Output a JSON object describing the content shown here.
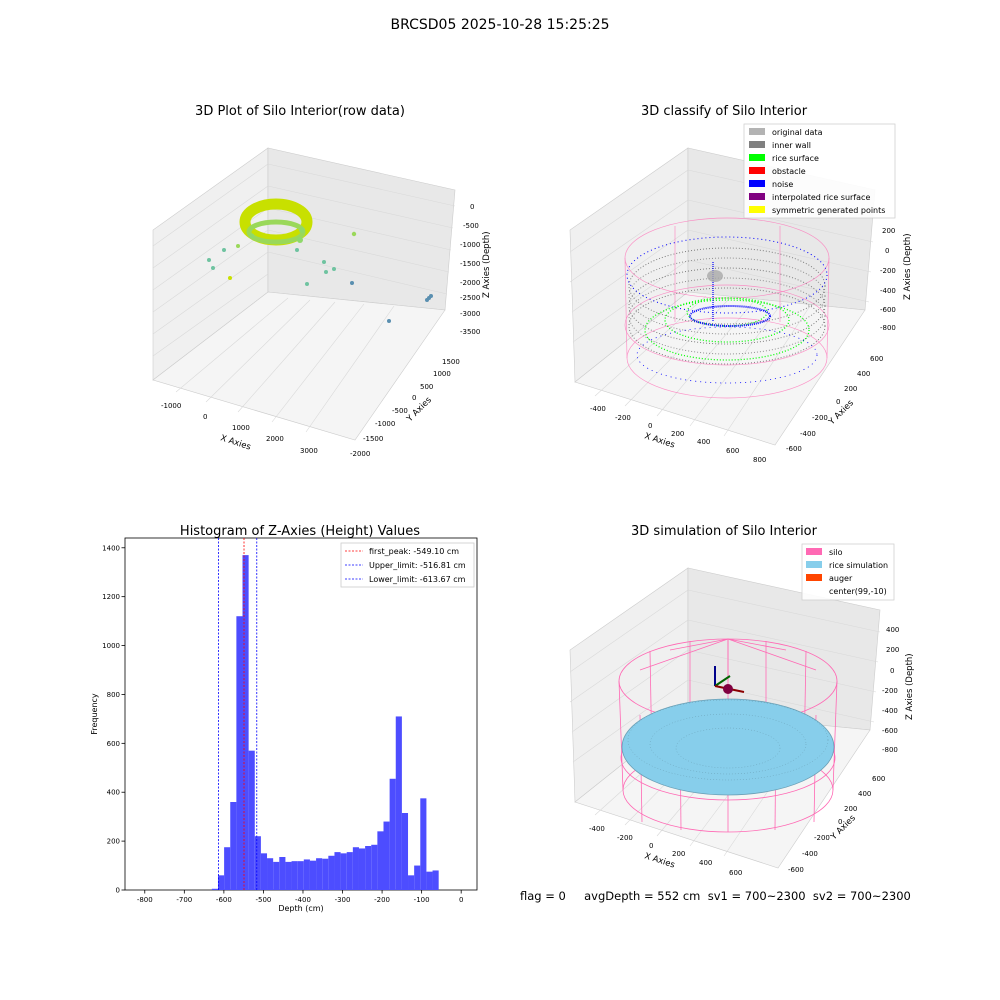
{
  "figure_title": "BRCSD05 2025-10-28 15:25:25",
  "footer": {
    "text": "flag = 0     avgDepth = 552 cm  sv1 = 700~2300  sv2 = 700~2300"
  },
  "chart_data": [
    {
      "type": "scatter",
      "projection": "3d",
      "title": "3D Plot of Silo Interior(row data)",
      "xlabel": "X Axies",
      "ylabel": "Y Axies",
      "zlabel": "Z Axies (Depth)",
      "x_ticks": [
        "-1000",
        "0",
        "1000",
        "2000",
        "3000"
      ],
      "y_ticks": [
        "1500",
        "1000",
        "500",
        "0",
        "-500",
        "-1000",
        "-1500",
        "-2000"
      ],
      "z_ticks": [
        "0",
        "-500",
        "-1000",
        "-1500",
        "-2000",
        "-2500",
        "-3000",
        "-3500"
      ],
      "colors": {
        "main_ring": "#c8e000",
        "ring_low": "#8fd96a",
        "outlier": "#6fc3a0",
        "far": "#5a8fb0"
      }
    },
    {
      "type": "scatter",
      "projection": "3d",
      "title": "3D classify of Silo Interior",
      "xlabel": "X Axies",
      "ylabel": "Y Axies",
      "zlabel": "Z Axies (Depth)",
      "x_ticks": [
        "-400",
        "-200",
        "0",
        "200",
        "400",
        "600",
        "800"
      ],
      "y_ticks": [
        "600",
        "400",
        "200",
        "0",
        "-200",
        "-400",
        "-600"
      ],
      "z_ticks": [
        "200",
        "0",
        "-200",
        "-400",
        "-600",
        "-800"
      ],
      "legend": [
        {
          "label": "original data",
          "color": "#b3b3b3"
        },
        {
          "label": "inner wall",
          "color": "#808080"
        },
        {
          "label": "rice surface",
          "color": "#00ff00"
        },
        {
          "label": "obstacle",
          "color": "#ff0000"
        },
        {
          "label": "noise",
          "color": "#0000ff"
        },
        {
          "label": "interpolated rice surface",
          "color": "#800080"
        },
        {
          "label": "symmetric generated points",
          "color": "#ffff00"
        }
      ],
      "legend_loc": "upper right",
      "colors": {
        "silo_wire": "#ff69b4"
      }
    },
    {
      "type": "bar",
      "title": "Histogram of Z-Axies (Height) Values",
      "xlabel": "Depth (cm)",
      "ylabel": "Frequency",
      "xlim": [
        -850,
        40
      ],
      "ylim": [
        0,
        1440
      ],
      "x_ticks": [
        -800,
        -700,
        -600,
        -500,
        -400,
        -300,
        -200,
        -100,
        0
      ],
      "y_ticks": [
        0,
        200,
        400,
        600,
        800,
        1000,
        1200,
        1400
      ],
      "bar_color": "#4d4dff",
      "bin_width": 15.5,
      "bin_starts": [
        -630.4,
        -614.9,
        -599.4,
        -583.9,
        -568.4,
        -552.9,
        -537.4,
        -521.9,
        -506.4,
        -490.9,
        -475.4,
        -459.9,
        -444.4,
        -428.9,
        -413.4,
        -397.9,
        -382.4,
        -366.9,
        -351.4,
        -335.9,
        -320.4,
        -304.9,
        -289.4,
        -273.9,
        -258.4,
        -242.9,
        -227.4,
        -211.9,
        -196.4,
        -180.9,
        -165.4,
        -149.9,
        -134.4,
        -118.9,
        -103.4,
        -87.9,
        -72.4,
        -56.9,
        -41.4,
        -25.9,
        -10.4
      ],
      "values": [
        5,
        60,
        175,
        360,
        1120,
        1370,
        570,
        220,
        150,
        130,
        115,
        135,
        115,
        118,
        118,
        125,
        120,
        130,
        128,
        140,
        155,
        150,
        155,
        175,
        170,
        180,
        185,
        240,
        280,
        455,
        710,
        315,
        60,
        100,
        375,
        75,
        80,
        0,
        0,
        0,
        0
      ],
      "vlines": [
        {
          "x": -549.1,
          "label": "first_peak: -549.10 cm",
          "color": "#ff0000"
        },
        {
          "x": -516.81,
          "label": "Upper_limit: -516.81 cm",
          "color": "#0000ff"
        },
        {
          "x": -613.67,
          "label": "Lower_limit: -613.67 cm",
          "color": "#0000ff"
        }
      ],
      "legend_loc": "upper right"
    },
    {
      "type": "scatter",
      "projection": "3d",
      "title": "3D simulation of Silo Interior",
      "xlabel": "X Axies",
      "ylabel": "Y Axies",
      "zlabel": "Z Axies (Depth)",
      "x_ticks": [
        "-400",
        "-200",
        "0",
        "200",
        "400",
        "600"
      ],
      "y_ticks": [
        "600",
        "400",
        "200",
        "0",
        "-200",
        "-400",
        "-600"
      ],
      "z_ticks": [
        "400",
        "200",
        "0",
        "-200",
        "-400",
        "-600",
        "-800"
      ],
      "legend": [
        {
          "label": "silo",
          "color": "#ff69b4"
        },
        {
          "label": "rice simulation",
          "color": "#87ceeb"
        },
        {
          "label": "auger",
          "color": "#ff4500"
        },
        {
          "label": "center(99,-10)",
          "color": "none"
        }
      ],
      "legend_loc": "upper right"
    }
  ]
}
